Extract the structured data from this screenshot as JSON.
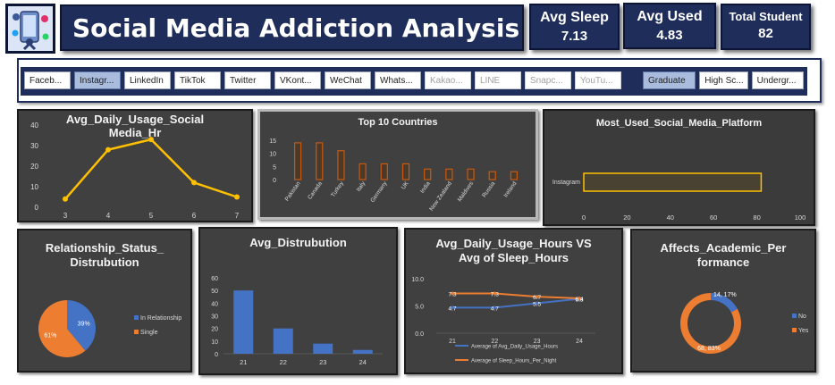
{
  "header": {
    "title": "Social Media Addiction Analysis",
    "kpis": [
      {
        "label": "Avg Sleep",
        "value": "7.13"
      },
      {
        "label": "Avg  Used",
        "value": "4.83"
      },
      {
        "label": "Total Student",
        "value": "82"
      }
    ]
  },
  "slicers": {
    "platforms": [
      {
        "label": "Faceb...",
        "state": "normal"
      },
      {
        "label": "Instagr...",
        "state": "selected"
      },
      {
        "label": "LinkedIn",
        "state": "normal"
      },
      {
        "label": "TikTok",
        "state": "normal"
      },
      {
        "label": "Twitter",
        "state": "normal"
      },
      {
        "label": "VKont...",
        "state": "normal"
      },
      {
        "label": "WeChat",
        "state": "normal"
      },
      {
        "label": "Whats...",
        "state": "normal"
      },
      {
        "label": "Kakao...",
        "state": "dim"
      },
      {
        "label": "LINE",
        "state": "dim"
      },
      {
        "label": "Snapc...",
        "state": "dim"
      },
      {
        "label": "YouTu...",
        "state": "dim"
      }
    ],
    "levels": [
      {
        "label": "Graduate",
        "state": "selected"
      },
      {
        "label": "High Sc...",
        "state": "normal"
      },
      {
        "label": "Undergr...",
        "state": "normal"
      }
    ]
  },
  "chart_data": [
    {
      "type": "line",
      "title": "Avg_Daily_Usage_Social Media_Hr",
      "x": [
        3,
        4,
        5,
        6,
        7
      ],
      "values": [
        4,
        28,
        33,
        12,
        5
      ],
      "ylim": [
        0,
        40
      ],
      "yticks": [
        0,
        10,
        20,
        30,
        40
      ],
      "color": "#ffc000"
    },
    {
      "type": "bar",
      "title": "Top 10 Countries",
      "categories": [
        "Pakistan",
        "Canada",
        "Turkey",
        "Italy",
        "Germany",
        "UK",
        "India",
        "New Zealand",
        "Maldives",
        "Russia",
        "Ireland"
      ],
      "values": [
        14,
        14,
        11,
        6,
        6,
        6,
        4,
        4,
        4,
        3,
        3
      ],
      "ylim": [
        0,
        15
      ],
      "yticks": [
        0,
        5,
        10,
        15
      ],
      "color": "#c55a11"
    },
    {
      "type": "bar",
      "title": "Most_Used_Social_Media_Platform",
      "categories": [
        "Instagram"
      ],
      "values": [
        82
      ],
      "xlim": [
        0,
        100
      ],
      "xticks": [
        0,
        20,
        40,
        60,
        80,
        100
      ],
      "color": "#ffc000"
    },
    {
      "type": "pie",
      "title": "Relationship_Status_ Distrubution",
      "labels": [
        "In Relationship",
        "Single"
      ],
      "values": [
        39,
        61
      ],
      "slice_labels": [
        "39%",
        "61%"
      ],
      "colors": [
        "#4472c4",
        "#ed7d31"
      ],
      "legend": "right"
    },
    {
      "type": "bar",
      "title": "Avg_Distrubution",
      "categories": [
        "21",
        "22",
        "23",
        "24"
      ],
      "values": [
        50,
        20,
        8,
        3
      ],
      "ylim": [
        0,
        60
      ],
      "yticks": [
        0,
        10,
        20,
        30,
        40,
        50,
        60
      ],
      "color": "#4472c4"
    },
    {
      "type": "line",
      "title": "Avg_Daily_Usage_Hours VS Avg of Sleep_Hours",
      "categories": [
        "21",
        "22",
        "23",
        "24"
      ],
      "series": [
        {
          "name": "Average of Avg_Daily_Usage_Hours",
          "values": [
            4.7,
            4.7,
            5.5,
            6.3
          ],
          "labels": [
            "4.7",
            "4.7",
            "5.5",
            "6.3"
          ],
          "color": "#4472c4"
        },
        {
          "name": "Average of Sleep_Hours_Per_Night",
          "values": [
            7.3,
            7.3,
            6.7,
            6.4
          ],
          "labels": [
            "7.3",
            "7.3",
            "6.7",
            "6.4"
          ],
          "color": "#ed7d31"
        }
      ],
      "ylim": [
        0,
        10
      ],
      "ytick_labels": [
        "0.0",
        "5.0",
        "10.0"
      ],
      "legend": "bottom"
    },
    {
      "type": "pie",
      "title": "Affects_Academic_Per formance",
      "donut": true,
      "labels": [
        "No",
        "Yes"
      ],
      "values": [
        14,
        68
      ],
      "slice_labels": [
        "14, 17%",
        "68, 83%"
      ],
      "colors": [
        "#4472c4",
        "#ed7d31"
      ],
      "legend": "right"
    }
  ]
}
